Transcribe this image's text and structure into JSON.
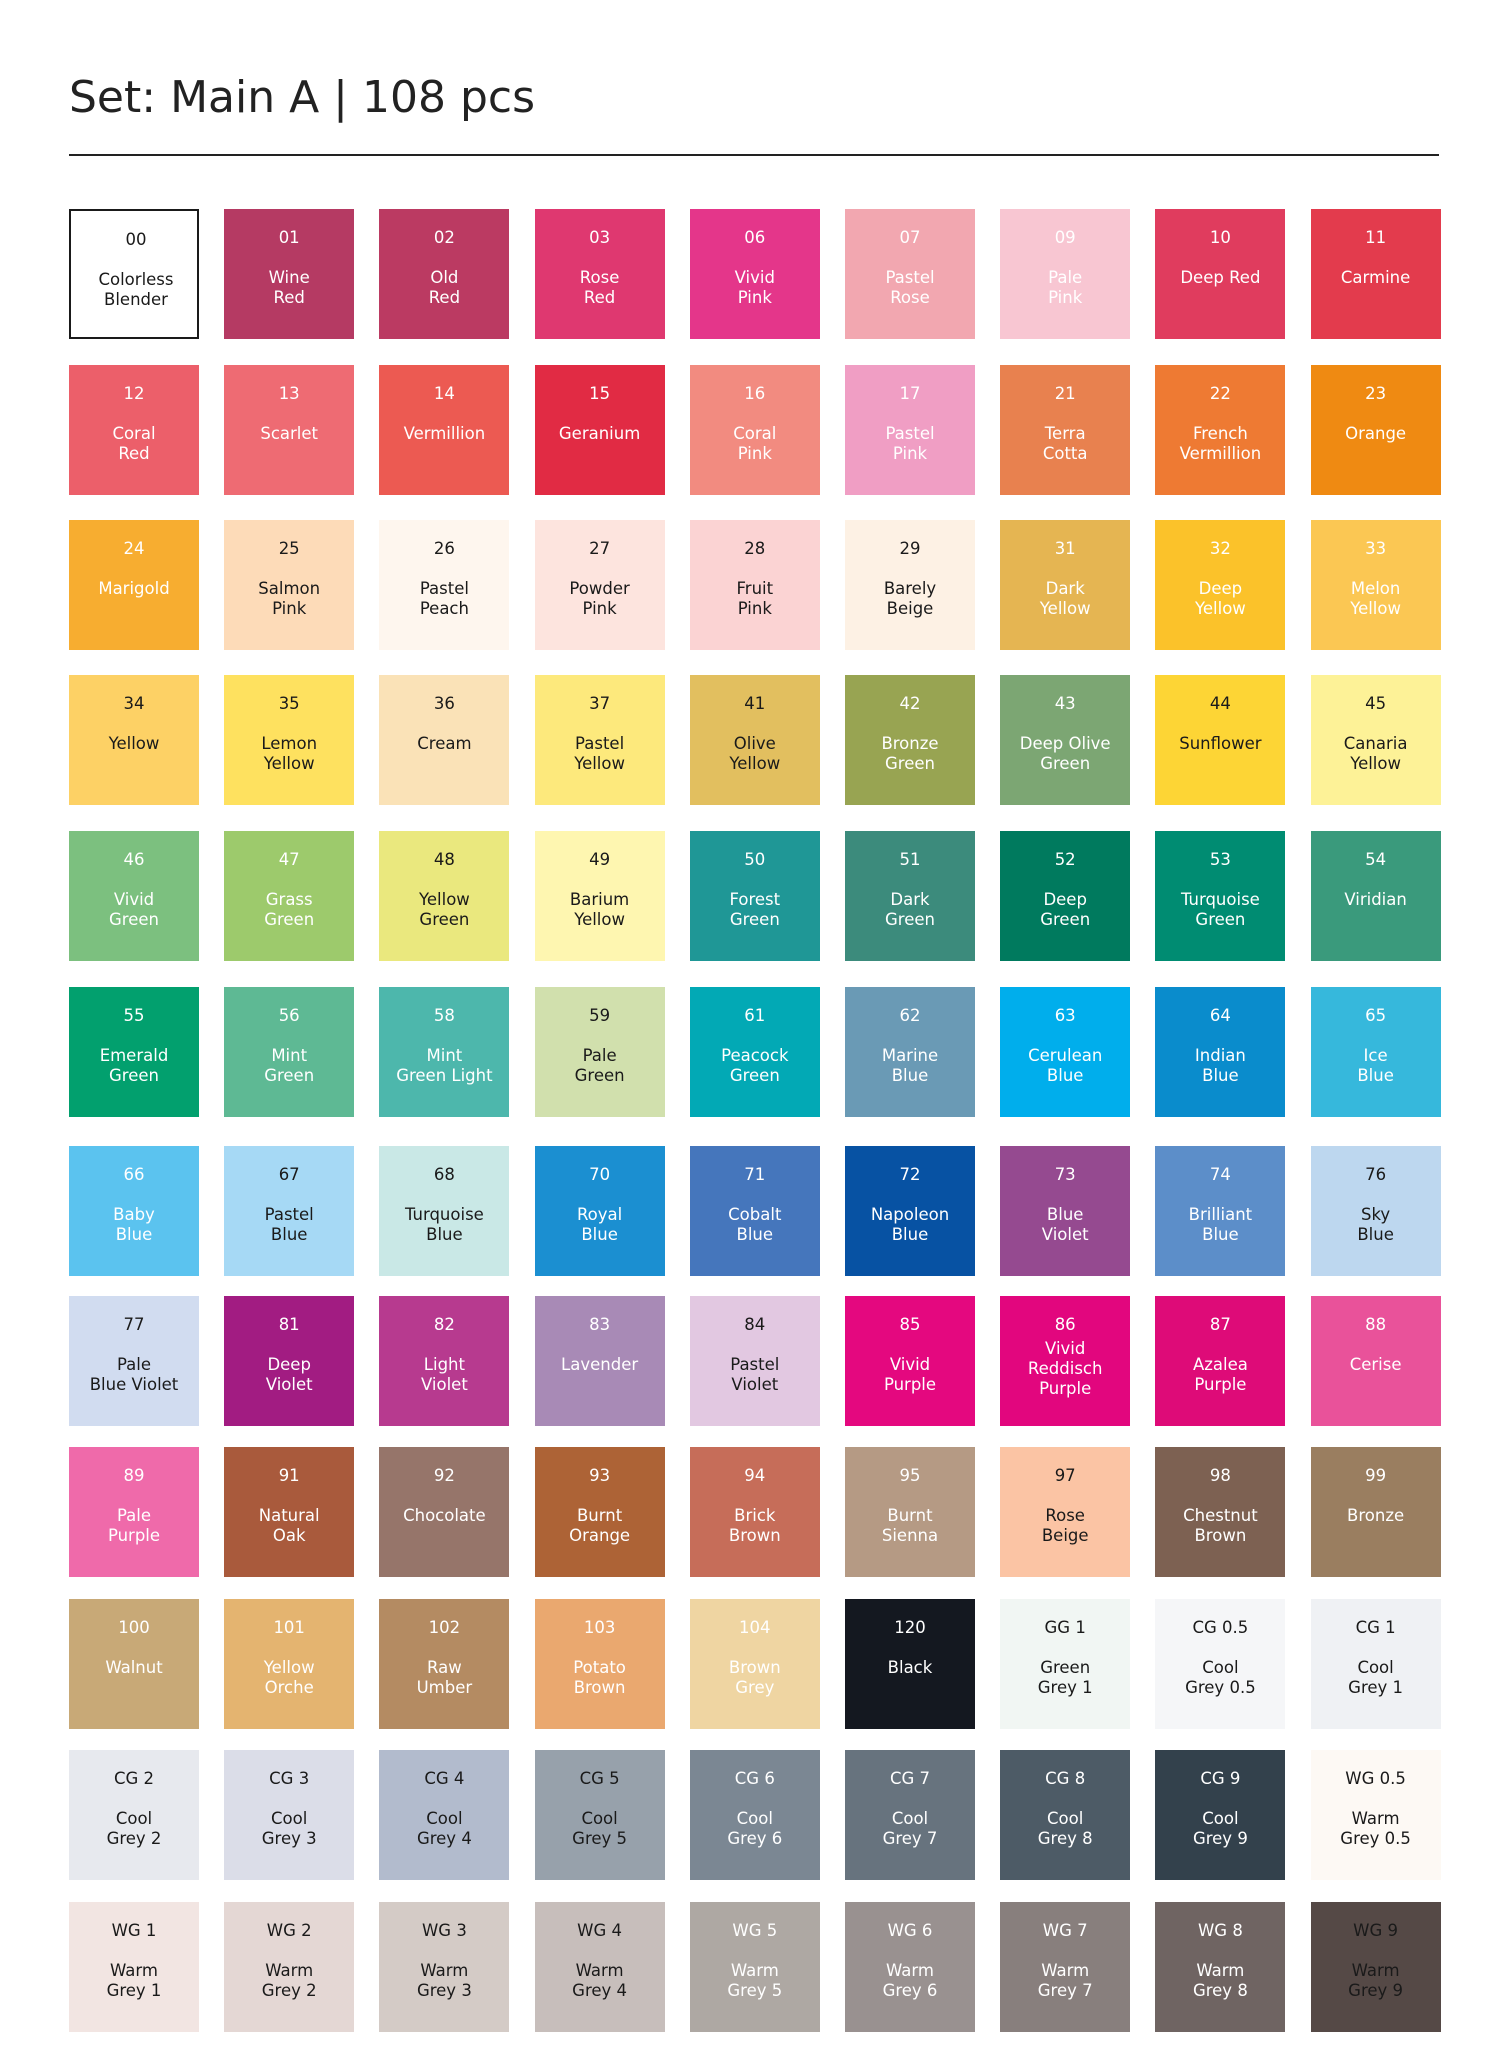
{
  "title": "Set: Main A | 108 pcs",
  "swatches": [
    {
      "code": "00",
      "name": [
        "Colorless",
        "Blender"
      ],
      "color": "#ffffff",
      "text_color": "#1a1a1a",
      "border": true
    },
    {
      "code": "01",
      "name": [
        "Wine",
        "Red"
      ],
      "color": "#b53a63",
      "text_color": "#ffffff"
    },
    {
      "code": "02",
      "name": [
        "Old",
        "Red"
      ],
      "color": "#bb3a62",
      "text_color": "#ffffff"
    },
    {
      "code": "03",
      "name": [
        "Rose",
        "Red"
      ],
      "color": "#df3870",
      "text_color": "#ffffff"
    },
    {
      "code": "06",
      "name": [
        "Vivid",
        "Pink"
      ],
      "color": "#e4368a",
      "text_color": "#ffffff"
    },
    {
      "code": "07",
      "name": [
        "Pastel",
        "Rose"
      ],
      "color": "#f2a7b0",
      "text_color": "#ffffff"
    },
    {
      "code": "09",
      "name": [
        "Pale",
        "Pink"
      ],
      "color": "#f8c6d2",
      "text_color": "#ffffff"
    },
    {
      "code": "10",
      "name": [
        "Deep Red"
      ],
      "color": "#e03c5e",
      "text_color": "#ffffff"
    },
    {
      "code": "11",
      "name": [
        "Carmine"
      ],
      "color": "#e33b4d",
      "text_color": "#ffffff"
    },
    {
      "code": "12",
      "name": [
        "Coral",
        "Red"
      ],
      "color": "#ec5f6a",
      "text_color": "#ffffff"
    },
    {
      "code": "13",
      "name": [
        "Scarlet"
      ],
      "color": "#ee6b73",
      "text_color": "#ffffff"
    },
    {
      "code": "14",
      "name": [
        "Vermillion"
      ],
      "color": "#ec5a52",
      "text_color": "#ffffff"
    },
    {
      "code": "15",
      "name": [
        "Geranium"
      ],
      "color": "#e12b44",
      "text_color": "#ffffff"
    },
    {
      "code": "16",
      "name": [
        "Coral",
        "Pink"
      ],
      "color": "#f28b80",
      "text_color": "#ffffff"
    },
    {
      "code": "17",
      "name": [
        "Pastel",
        "Pink"
      ],
      "color": "#f09ec4",
      "text_color": "#ffffff"
    },
    {
      "code": "21",
      "name": [
        "Terra",
        "Cotta"
      ],
      "color": "#e8814f",
      "text_color": "#ffffff"
    },
    {
      "code": "22",
      "name": [
        "French",
        "Vermillion"
      ],
      "color": "#ee7a33",
      "text_color": "#ffffff"
    },
    {
      "code": "23",
      "name": [
        "Orange"
      ],
      "color": "#ef8a12",
      "text_color": "#ffffff"
    },
    {
      "code": "24",
      "name": [
        "Marigold"
      ],
      "color": "#f7ad30",
      "text_color": "#ffffff"
    },
    {
      "code": "25",
      "name": [
        "Salmon",
        "Pink"
      ],
      "color": "#fddbb8",
      "text_color": "#1a1a1a"
    },
    {
      "code": "26",
      "name": [
        "Pastel",
        "Peach"
      ],
      "color": "#fef6ee",
      "text_color": "#1a1a1a"
    },
    {
      "code": "27",
      "name": [
        "Powder",
        "Pink"
      ],
      "color": "#fde4de",
      "text_color": "#1a1a1a"
    },
    {
      "code": "28",
      "name": [
        "Fruit",
        "Pink"
      ],
      "color": "#fbd3d3",
      "text_color": "#1a1a1a"
    },
    {
      "code": "29",
      "name": [
        "Barely",
        "Beige"
      ],
      "color": "#fdf1e4",
      "text_color": "#1a1a1a"
    },
    {
      "code": "31",
      "name": [
        "Dark",
        "Yellow"
      ],
      "color": "#e5b552",
      "text_color": "#ffffff"
    },
    {
      "code": "32",
      "name": [
        "Deep",
        "Yellow"
      ],
      "color": "#fbc22a",
      "text_color": "#ffffff"
    },
    {
      "code": "33",
      "name": [
        "Melon",
        "Yellow"
      ],
      "color": "#fbc753",
      "text_color": "#ffffff"
    },
    {
      "code": "34",
      "name": [
        "Yellow"
      ],
      "color": "#fdd165",
      "text_color": "#1a1a1a"
    },
    {
      "code": "35",
      "name": [
        "Lemon",
        "Yellow"
      ],
      "color": "#fee15f",
      "text_color": "#1a1a1a"
    },
    {
      "code": "36",
      "name": [
        "Cream"
      ],
      "color": "#fae2b7",
      "text_color": "#1a1a1a"
    },
    {
      "code": "37",
      "name": [
        "Pastel",
        "Yellow"
      ],
      "color": "#fde97c",
      "text_color": "#1a1a1a"
    },
    {
      "code": "41",
      "name": [
        "Olive",
        "Yellow"
      ],
      "color": "#e2bf5f",
      "text_color": "#1a1a1a"
    },
    {
      "code": "42",
      "name": [
        "Bronze",
        "Green"
      ],
      "color": "#98a452",
      "text_color": "#ffffff"
    },
    {
      "code": "43",
      "name": [
        "Deep Olive",
        "Green"
      ],
      "color": "#7ca673",
      "text_color": "#ffffff"
    },
    {
      "code": "44",
      "name": [
        "Sunflower"
      ],
      "color": "#fdd535",
      "text_color": "#1a1a1a"
    },
    {
      "code": "45",
      "name": [
        "Canaria",
        "Yellow"
      ],
      "color": "#fdf297",
      "text_color": "#1a1a1a"
    },
    {
      "code": "46",
      "name": [
        "Vivid",
        "Green"
      ],
      "color": "#7cc07f",
      "text_color": "#ffffff"
    },
    {
      "code": "47",
      "name": [
        "Grass",
        "Green"
      ],
      "color": "#9dca6c",
      "text_color": "#ffffff"
    },
    {
      "code": "48",
      "name": [
        "Yellow",
        "Green"
      ],
      "color": "#eae87e",
      "text_color": "#1a1a1a"
    },
    {
      "code": "49",
      "name": [
        "Barium",
        "Yellow"
      ],
      "color": "#fef6b0",
      "text_color": "#1a1a1a"
    },
    {
      "code": "50",
      "name": [
        "Forest",
        "Green"
      ],
      "color": "#1f9796",
      "text_color": "#ffffff"
    },
    {
      "code": "51",
      "name": [
        "Dark",
        "Green"
      ],
      "color": "#3c8b7c",
      "text_color": "#ffffff"
    },
    {
      "code": "52",
      "name": [
        "Deep",
        "Green"
      ],
      "color": "#007a5e",
      "text_color": "#ffffff"
    },
    {
      "code": "53",
      "name": [
        "Turquoise",
        "Green"
      ],
      "color": "#008c72",
      "text_color": "#ffffff"
    },
    {
      "code": "54",
      "name": [
        "Viridian"
      ],
      "color": "#3a9a7c",
      "text_color": "#ffffff"
    },
    {
      "code": "55",
      "name": [
        "Emerald",
        "Green"
      ],
      "color": "#02a06e",
      "text_color": "#ffffff"
    },
    {
      "code": "56",
      "name": [
        "Mint",
        "Green"
      ],
      "color": "#5eb994",
      "text_color": "#ffffff"
    },
    {
      "code": "58",
      "name": [
        "Mint",
        "Green Light"
      ],
      "color": "#4db7ac",
      "text_color": "#ffffff"
    },
    {
      "code": "59",
      "name": [
        "Pale",
        "Green"
      ],
      "color": "#d1e0ad",
      "text_color": "#1a1a1a"
    },
    {
      "code": "61",
      "name": [
        "Peacock",
        "Green"
      ],
      "color": "#02a9b5",
      "text_color": "#ffffff"
    },
    {
      "code": "62",
      "name": [
        "Marine",
        "Blue"
      ],
      "color": "#6a9ab5",
      "text_color": "#ffffff"
    },
    {
      "code": "63",
      "name": [
        "Cerulean",
        "Blue"
      ],
      "color": "#00aeec",
      "text_color": "#ffffff"
    },
    {
      "code": "64",
      "name": [
        "Indian",
        "Blue"
      ],
      "color": "#0a8ccc",
      "text_color": "#ffffff"
    },
    {
      "code": "65",
      "name": [
        "Ice",
        "Blue"
      ],
      "color": "#36b8dc",
      "text_color": "#ffffff"
    },
    {
      "code": "66",
      "name": [
        "Baby",
        "Blue"
      ],
      "color": "#5bc3ef",
      "text_color": "#ffffff"
    },
    {
      "code": "67",
      "name": [
        "Pastel",
        "Blue"
      ],
      "color": "#a6d9f5",
      "text_color": "#1a1a1a"
    },
    {
      "code": "68",
      "name": [
        "Turquoise",
        "Blue"
      ],
      "color": "#c9e8e6",
      "text_color": "#1a1a1a"
    },
    {
      "code": "70",
      "name": [
        "Royal",
        "Blue"
      ],
      "color": "#1b8fd1",
      "text_color": "#ffffff"
    },
    {
      "code": "71",
      "name": [
        "Cobalt",
        "Blue"
      ],
      "color": "#4576bc",
      "text_color": "#ffffff"
    },
    {
      "code": "72",
      "name": [
        "Napoleon",
        "Blue"
      ],
      "color": "#0752a3",
      "text_color": "#ffffff"
    },
    {
      "code": "73",
      "name": [
        "Blue",
        "Violet"
      ],
      "color": "#954a90",
      "text_color": "#ffffff"
    },
    {
      "code": "74",
      "name": [
        "Brilliant",
        "Blue"
      ],
      "color": "#5c8ec9",
      "text_color": "#ffffff"
    },
    {
      "code": "76",
      "name": [
        "Sky",
        "Blue"
      ],
      "color": "#bdd7ef",
      "text_color": "#1a1a1a"
    },
    {
      "code": "77",
      "name": [
        "Pale",
        "Blue Violet"
      ],
      "color": "#d1dcf0",
      "text_color": "#1a1a1a"
    },
    {
      "code": "81",
      "name": [
        "Deep",
        "Violet"
      ],
      "color": "#a21c82",
      "text_color": "#ffffff"
    },
    {
      "code": "82",
      "name": [
        "Light",
        "Violet"
      ],
      "color": "#b73a8f",
      "text_color": "#ffffff"
    },
    {
      "code": "83",
      "name": [
        "Lavender"
      ],
      "color": "#a88ab6",
      "text_color": "#ffffff"
    },
    {
      "code": "84",
      "name": [
        "Pastel",
        "Violet"
      ],
      "color": "#e2c8e1",
      "text_color": "#1a1a1a"
    },
    {
      "code": "85",
      "name": [
        "Vivid",
        "Purple"
      ],
      "color": "#e4087f",
      "text_color": "#ffffff"
    },
    {
      "code": "86",
      "name": [
        "Vivid",
        "Reddisch",
        "Purple"
      ],
      "color": "#e2067e",
      "text_color": "#ffffff"
    },
    {
      "code": "87",
      "name": [
        "Azalea",
        "Purple"
      ],
      "color": "#de0b78",
      "text_color": "#ffffff"
    },
    {
      "code": "88",
      "name": [
        "Cerise"
      ],
      "color": "#e9529a",
      "text_color": "#ffffff"
    },
    {
      "code": "89",
      "name": [
        "Pale",
        "Purple"
      ],
      "color": "#ef6aaa",
      "text_color": "#ffffff"
    },
    {
      "code": "91",
      "name": [
        "Natural",
        "Oak"
      ],
      "color": "#a95a3c",
      "text_color": "#ffffff"
    },
    {
      "code": "92",
      "name": [
        "Chocolate"
      ],
      "color": "#96756a",
      "text_color": "#ffffff"
    },
    {
      "code": "93",
      "name": [
        "Burnt",
        "Orange"
      ],
      "color": "#ad6336",
      "text_color": "#ffffff"
    },
    {
      "code": "94",
      "name": [
        "Brick",
        "Brown"
      ],
      "color": "#c66d59",
      "text_color": "#ffffff"
    },
    {
      "code": "95",
      "name": [
        "Burnt",
        "Sienna"
      ],
      "color": "#b59a84",
      "text_color": "#ffffff"
    },
    {
      "code": "97",
      "name": [
        "Rose",
        "Beige"
      ],
      "color": "#fbc4a4",
      "text_color": "#1a1a1a"
    },
    {
      "code": "98",
      "name": [
        "Chestnut",
        "Brown"
      ],
      "color": "#7d6152",
      "text_color": "#ffffff"
    },
    {
      "code": "99",
      "name": [
        "Bronze"
      ],
      "color": "#9a7e60",
      "text_color": "#ffffff"
    },
    {
      "code": "100",
      "name": [
        "Walnut"
      ],
      "color": "#c8a977",
      "text_color": "#ffffff"
    },
    {
      "code": "101",
      "name": [
        "Yellow",
        "Orche"
      ],
      "color": "#e4b470",
      "text_color": "#ffffff"
    },
    {
      "code": "102",
      "name": [
        "Raw",
        "Umber"
      ],
      "color": "#b48b62",
      "text_color": "#ffffff"
    },
    {
      "code": "103",
      "name": [
        "Potato",
        "Brown"
      ],
      "color": "#eaa86f",
      "text_color": "#ffffff"
    },
    {
      "code": "104",
      "name": [
        "Brown",
        "Grey"
      ],
      "color": "#efd5a2",
      "text_color": "#ffffff"
    },
    {
      "code": "120",
      "name": [
        "Black"
      ],
      "color": "#141820",
      "text_color": "#ffffff"
    },
    {
      "code": "GG 1",
      "name": [
        "Green",
        "Grey 1"
      ],
      "color": "#f1f6f3",
      "text_color": "#1a1a1a"
    },
    {
      "code": "CG 0.5",
      "name": [
        "Cool",
        "Grey 0.5"
      ],
      "color": "#f5f6f8",
      "text_color": "#1a1a1a"
    },
    {
      "code": "CG 1",
      "name": [
        "Cool",
        "Grey 1"
      ],
      "color": "#eff1f4",
      "text_color": "#1a1a1a"
    },
    {
      "code": "CG 2",
      "name": [
        "Cool",
        "Grey 2"
      ],
      "color": "#e7e9ee",
      "text_color": "#1a1a1a"
    },
    {
      "code": "CG 3",
      "name": [
        "Cool",
        "Grey 3"
      ],
      "color": "#dbdde8",
      "text_color": "#1a1a1a"
    },
    {
      "code": "CG 4",
      "name": [
        "Cool",
        "Grey 4"
      ],
      "color": "#b2bbcd",
      "text_color": "#1a1a1a"
    },
    {
      "code": "CG 5",
      "name": [
        "Cool",
        "Grey 5"
      ],
      "color": "#97a1ab",
      "text_color": "#1a1a1a"
    },
    {
      "code": "CG 6",
      "name": [
        "Cool",
        "Grey 6"
      ],
      "color": "#7b8793",
      "text_color": "#ffffff"
    },
    {
      "code": "CG 7",
      "name": [
        "Cool",
        "Grey 7"
      ],
      "color": "#67737e",
      "text_color": "#ffffff"
    },
    {
      "code": "CG 8",
      "name": [
        "Cool",
        "Grey 8"
      ],
      "color": "#4d5b66",
      "text_color": "#ffffff"
    },
    {
      "code": "CG 9",
      "name": [
        "Cool",
        "Grey 9"
      ],
      "color": "#33414c",
      "text_color": "#ffffff"
    },
    {
      "code": "WG 0.5",
      "name": [
        "Warm",
        "Grey 0.5"
      ],
      "color": "#fdf9f4",
      "text_color": "#1a1a1a"
    },
    {
      "code": "WG 1",
      "name": [
        "Warm",
        "Grey 1"
      ],
      "color": "#f2e5e2",
      "text_color": "#1a1a1a"
    },
    {
      "code": "WG 2",
      "name": [
        "Warm",
        "Grey 2"
      ],
      "color": "#e4d7d4",
      "text_color": "#1a1a1a"
    },
    {
      "code": "WG 3",
      "name": [
        "Warm",
        "Grey 3"
      ],
      "color": "#d4cbc6",
      "text_color": "#1a1a1a"
    },
    {
      "code": "WG 4",
      "name": [
        "Warm",
        "Grey 4"
      ],
      "color": "#c7bebb",
      "text_color": "#1a1a1a"
    },
    {
      "code": "WG 5",
      "name": [
        "Warm",
        "Grey 5"
      ],
      "color": "#aea8a3",
      "text_color": "#ffffff"
    },
    {
      "code": "WG 6",
      "name": [
        "Warm",
        "Grey 6"
      ],
      "color": "#999190",
      "text_color": "#ffffff"
    },
    {
      "code": "WG 7",
      "name": [
        "Warm",
        "Grey 7"
      ],
      "color": "#887f7d",
      "text_color": "#ffffff"
    },
    {
      "code": "WG 8",
      "name": [
        "Warm",
        "Grey 8"
      ],
      "color": "#6f6462",
      "text_color": "#ffffff"
    },
    {
      "code": "WG 9",
      "name": [
        "Warm",
        "Grey 9"
      ],
      "color": "#554946",
      "text_color": "#1a1a1a"
    }
  ]
}
